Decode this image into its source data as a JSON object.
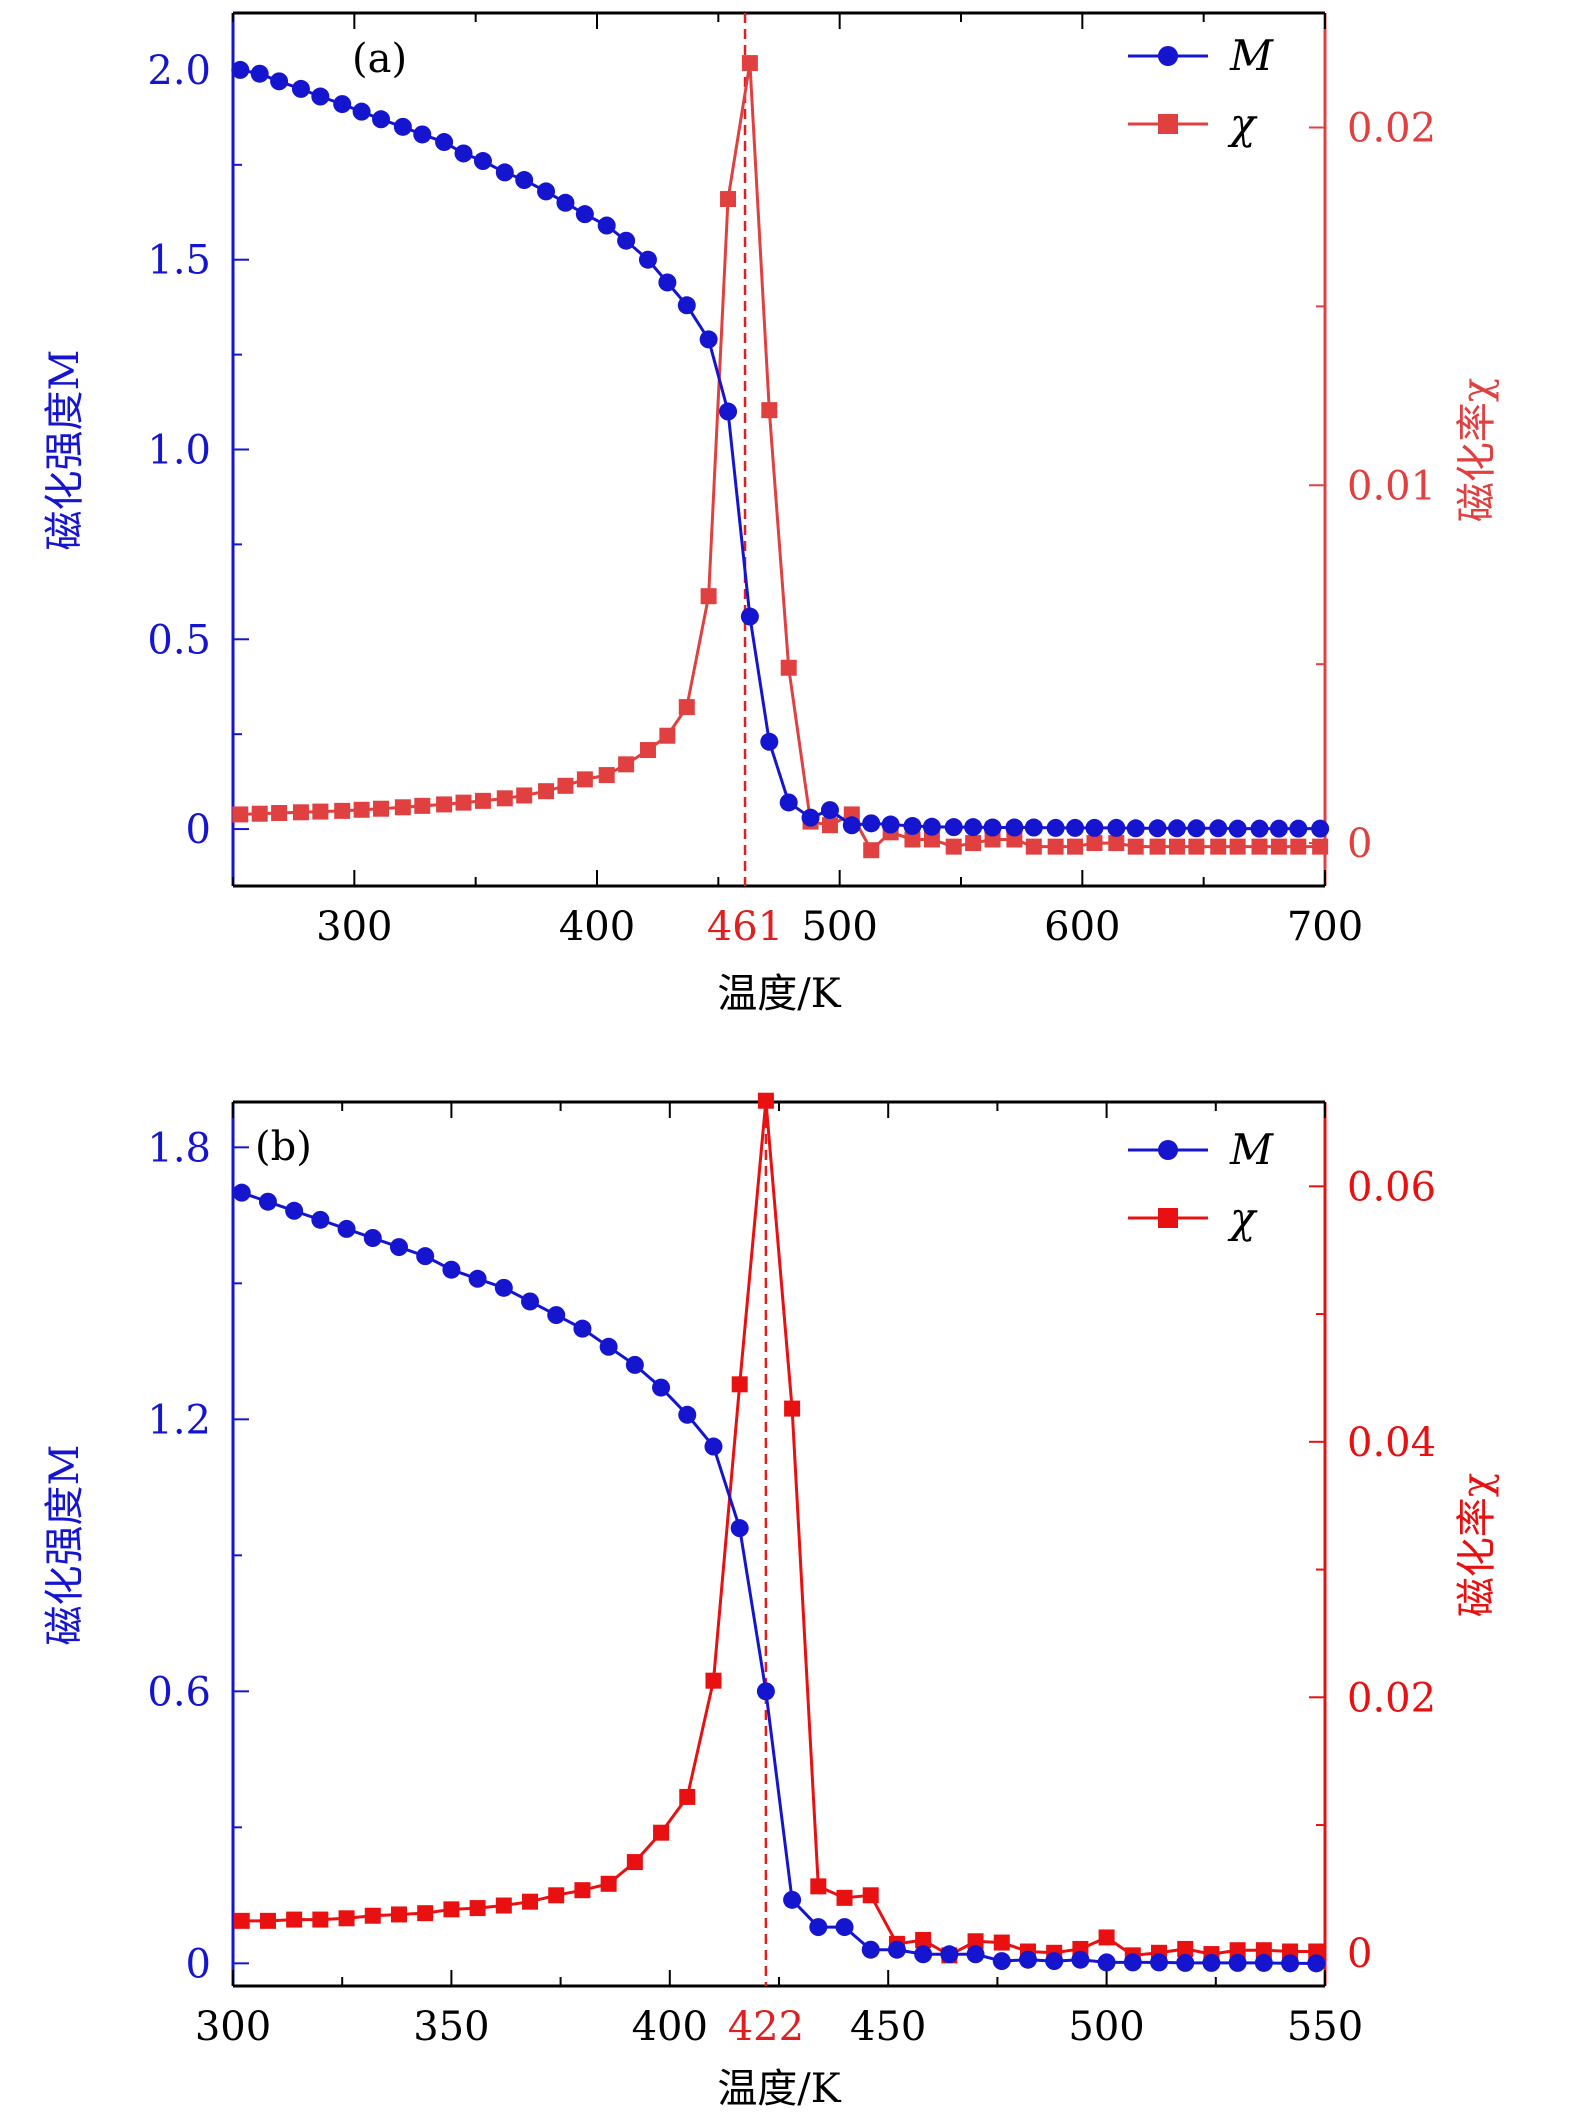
{
  "chart_data": [
    {
      "type": "line",
      "panel_label": "(a)",
      "xlabel": "温度/K",
      "ylabel_left": "磁化强度M",
      "ylabel_right": "磁化率χ",
      "xlim": [
        250,
        700
      ],
      "ylim_left": [
        -0.15,
        2.15
      ],
      "ylim_right": [
        -0.0012,
        0.0232
      ],
      "xticks": [
        300,
        400,
        500,
        600,
        700
      ],
      "yticks_left": [
        0,
        0.5,
        1.0,
        1.5,
        2.0
      ],
      "yticks_left_labels": [
        "0",
        "0.5",
        "1.0",
        "1.5",
        "2.0"
      ],
      "yticks_right": [
        0,
        0.01,
        0.02
      ],
      "yticks_right_labels": [
        "0",
        "0.01",
        "0.02"
      ],
      "critical_line": {
        "x": 461,
        "label": "461"
      },
      "colors": {
        "M": "#1515d0",
        "chi": "#e04040",
        "chi_axis": "#e04040",
        "critical": "#e02020"
      },
      "legend": {
        "placement": "top-right",
        "entries": [
          "M",
          "χ"
        ]
      },
      "series": [
        {
          "name": "M",
          "marker": "circle",
          "x": [
            253,
            261,
            269,
            278,
            286,
            295,
            303,
            311,
            320,
            328,
            337,
            345,
            353,
            362,
            370,
            379,
            387,
            395,
            404,
            412,
            421,
            429,
            437,
            446,
            454,
            463,
            471,
            479,
            488,
            496,
            505,
            513,
            521,
            530,
            538,
            547,
            555,
            563,
            572,
            580,
            589,
            597,
            605,
            614,
            622,
            631,
            639,
            647,
            656,
            664,
            673,
            681,
            689,
            698
          ],
          "values": [
            2.0,
            1.99,
            1.97,
            1.95,
            1.93,
            1.91,
            1.89,
            1.87,
            1.85,
            1.83,
            1.81,
            1.78,
            1.76,
            1.73,
            1.71,
            1.68,
            1.65,
            1.62,
            1.59,
            1.55,
            1.5,
            1.44,
            1.38,
            1.29,
            1.1,
            0.56,
            0.23,
            0.07,
            0.03,
            0.05,
            0.01,
            0.015,
            0.012,
            0.008,
            0.006,
            0.005,
            0.005,
            0.004,
            0.004,
            0.004,
            0.003,
            0.003,
            0.003,
            0.003,
            0.002,
            0.002,
            0.002,
            0.002,
            0.002,
            0.001,
            0.001,
            0.001,
            0.001,
            0.001
          ]
        },
        {
          "name": "χ",
          "marker": "square",
          "x": [
            253,
            261,
            269,
            278,
            286,
            295,
            303,
            311,
            320,
            328,
            337,
            345,
            353,
            362,
            370,
            379,
            387,
            395,
            404,
            412,
            421,
            429,
            437,
            446,
            454,
            463,
            471,
            479,
            488,
            496,
            505,
            513,
            521,
            530,
            538,
            547,
            555,
            563,
            572,
            580,
            589,
            597,
            605,
            614,
            622,
            631,
            639,
            647,
            656,
            664,
            673,
            681,
            689,
            698
          ],
          "values": [
            0.0008,
            0.00082,
            0.00084,
            0.00086,
            0.00088,
            0.0009,
            0.00093,
            0.00096,
            0.001,
            0.00104,
            0.00108,
            0.00113,
            0.00118,
            0.00125,
            0.00133,
            0.00145,
            0.0016,
            0.00178,
            0.0019,
            0.0022,
            0.0026,
            0.003,
            0.0038,
            0.0069,
            0.018,
            0.0218,
            0.0121,
            0.0049,
            0.0006,
            0.0005,
            0.0008,
            -0.0002,
            0.0003,
            0.0001,
            0.0001,
            -0.0001,
            0.0,
            0.0001,
            0.0001,
            -0.0001,
            -0.0001,
            -0.0001,
            0.0,
            0.0,
            -0.0001,
            -0.0001,
            -0.0001,
            -0.0001,
            -0.0001,
            -0.0001,
            -0.0001,
            -0.0001,
            -0.0001,
            -0.0001
          ]
        }
      ]
    },
    {
      "type": "line",
      "panel_label": "(b)",
      "xlabel": "温度/K",
      "ylabel_left": "磁化强度M",
      "ylabel_right": "磁化率χ",
      "xlim": [
        300,
        550
      ],
      "ylim_left": [
        -0.05,
        1.9
      ],
      "ylim_right": [
        -0.0026,
        0.0666
      ],
      "xticks": [
        300,
        350,
        400,
        450,
        500,
        550
      ],
      "yticks_left": [
        0,
        0.6,
        1.2,
        1.8
      ],
      "yticks_left_labels": [
        "0",
        "0.6",
        "1.2",
        "1.8"
      ],
      "yticks_right": [
        0,
        0.02,
        0.04,
        0.06
      ],
      "yticks_right_labels": [
        "0",
        "0.02",
        "0.04",
        "0.06"
      ],
      "critical_line": {
        "x": 422,
        "label": "422"
      },
      "colors": {
        "M": "#1515d0",
        "chi": "#e81010",
        "chi_axis": "#e81010",
        "critical": "#e02020"
      },
      "legend": {
        "placement": "top-right",
        "entries": [
          "M",
          "χ"
        ]
      },
      "series": [
        {
          "name": "M",
          "marker": "circle",
          "x": [
            302,
            308,
            314,
            320,
            326,
            332,
            338,
            344,
            350,
            356,
            362,
            368,
            374,
            380,
            386,
            392,
            398,
            404,
            410,
            416,
            422,
            428,
            434,
            440,
            446,
            452,
            458,
            464,
            470,
            476,
            482,
            488,
            494,
            500,
            506,
            512,
            518,
            524,
            530,
            536,
            542,
            548
          ],
          "values": [
            1.7,
            1.68,
            1.66,
            1.64,
            1.62,
            1.6,
            1.58,
            1.56,
            1.53,
            1.51,
            1.49,
            1.46,
            1.43,
            1.4,
            1.36,
            1.32,
            1.27,
            1.21,
            1.14,
            0.96,
            0.6,
            0.14,
            0.08,
            0.08,
            0.03,
            0.03,
            0.02,
            0.02,
            0.02,
            0.005,
            0.008,
            0.005,
            0.008,
            0.002,
            0.002,
            0.002,
            0.001,
            0.001,
            0.001,
            0.001,
            0.0,
            0.0
          ]
        },
        {
          "name": "χ",
          "marker": "square",
          "x": [
            302,
            308,
            314,
            320,
            326,
            332,
            338,
            344,
            350,
            356,
            362,
            368,
            374,
            380,
            386,
            392,
            398,
            404,
            410,
            416,
            422,
            428,
            434,
            440,
            446,
            452,
            458,
            464,
            470,
            476,
            482,
            488,
            494,
            500,
            506,
            512,
            518,
            524,
            530,
            536,
            542,
            548
          ],
          "values": [
            0.0025,
            0.0025,
            0.0026,
            0.0026,
            0.0027,
            0.0029,
            0.003,
            0.0031,
            0.0034,
            0.0035,
            0.0037,
            0.004,
            0.0045,
            0.0049,
            0.0054,
            0.0071,
            0.0094,
            0.0122,
            0.0213,
            0.0445,
            0.0667,
            0.0426,
            0.0052,
            0.0043,
            0.0045,
            0.0007,
            0.001,
            -0.0002,
            0.0009,
            0.0008,
            0.0001,
            0.0,
            0.0003,
            0.0012,
            -0.0002,
            0.0,
            0.0003,
            -0.0001,
            0.0002,
            0.0002,
            0.0001,
            0.0001
          ]
        }
      ]
    }
  ]
}
